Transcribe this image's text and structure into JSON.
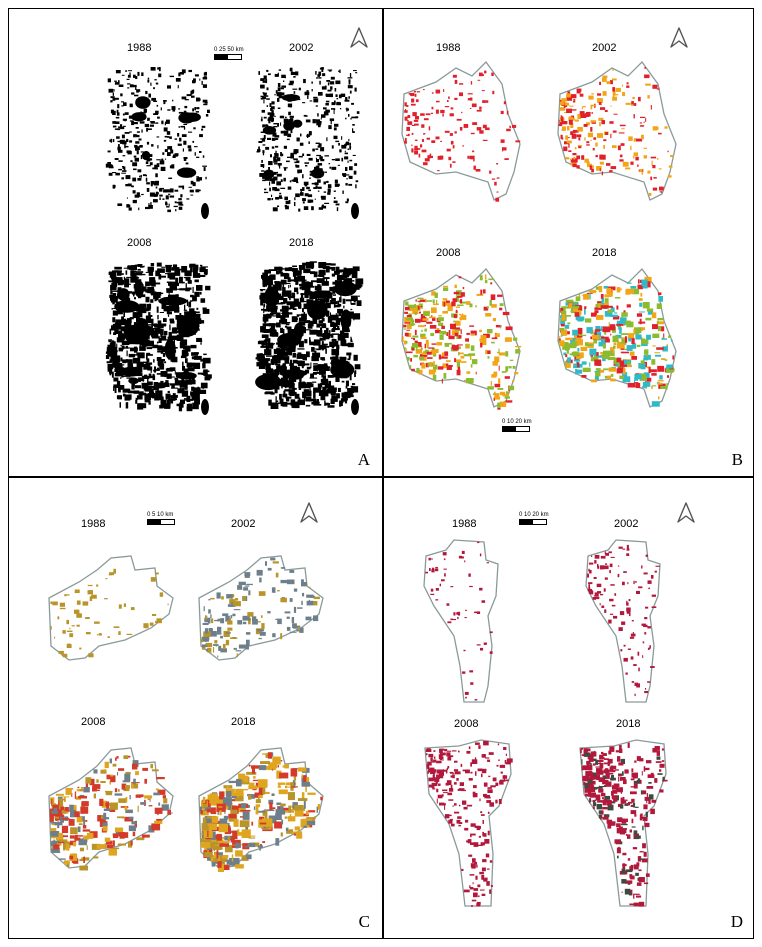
{
  "panels": [
    {
      "letter": "A",
      "years": [
        "1988",
        "2002",
        "2008",
        "2018"
      ],
      "scale": {
        "ticks": "0  25  50 km"
      }
    },
    {
      "letter": "B",
      "years": [
        "1988",
        "2002",
        "2008",
        "2018"
      ],
      "scale": {
        "ticks": "0   10   20 km"
      }
    },
    {
      "letter": "C",
      "years": [
        "1988",
        "2002",
        "2008",
        "2018"
      ],
      "scale": {
        "ticks": "0   5   10 km"
      }
    },
    {
      "letter": "D",
      "years": [
        "1988",
        "2002",
        "2008",
        "2018"
      ],
      "scale": {
        "ticks": "0   10   20 km"
      }
    }
  ],
  "colors": {
    "outline": "#8a9a9a",
    "mask": "#000000",
    "b_1988": "#e0202a",
    "b_2002": "#f2a516",
    "b_2008": "#8dbb2f",
    "b_2018": "#2fb9c9",
    "c_1988": "#b99428",
    "c_2002": "#6d7f8a",
    "c_2008": "#d33a2a",
    "c_2018": "#e0a51f",
    "d_main": "#b1183b",
    "d_dark": "#3c4a3f"
  }
}
